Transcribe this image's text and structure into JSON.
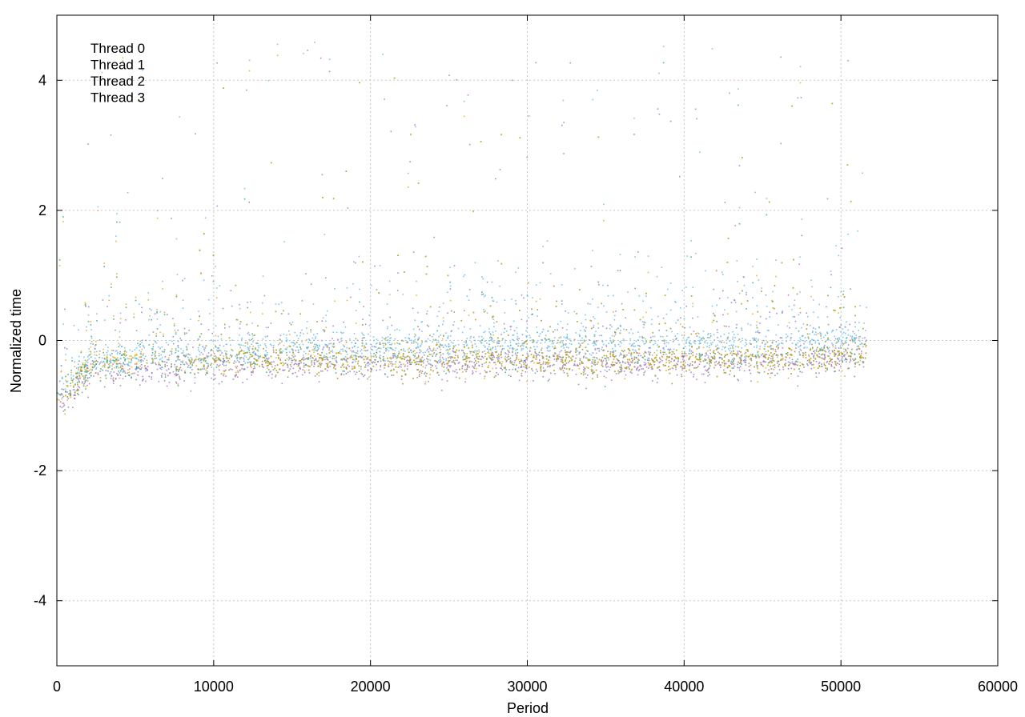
{
  "chart_data": {
    "type": "scatter",
    "xlabel": "Period",
    "ylabel": "Normalized time",
    "xlim": [
      0,
      60000
    ],
    "ylim": [
      -5,
      5
    ],
    "x_ticks": [
      0,
      10000,
      20000,
      30000,
      40000,
      50000,
      60000
    ],
    "y_ticks": [
      -4,
      -2,
      0,
      2,
      4
    ],
    "grid": true,
    "legend_position": "top-left",
    "x_extent_of_data": [
      0,
      51600
    ],
    "series": [
      {
        "name": "Thread 0",
        "color": "#9467bd",
        "description_points": [
          {
            "x": 0,
            "y": -1.0
          },
          {
            "x": 2000,
            "y": -0.55
          },
          {
            "x": 5000,
            "y": -0.45
          },
          {
            "x": 10000,
            "y": -0.4
          },
          {
            "x": 20000,
            "y": -0.35
          },
          {
            "x": 30000,
            "y": -0.35
          },
          {
            "x": 40000,
            "y": -0.35
          },
          {
            "x": 50000,
            "y": -0.3
          },
          {
            "x": 51600,
            "y": -0.3
          }
        ]
      },
      {
        "name": "Thread 1",
        "color": "#1a9e77",
        "description_points": [
          {
            "x": 0,
            "y": -0.9
          },
          {
            "x": 2000,
            "y": -0.4
          },
          {
            "x": 5000,
            "y": -0.35
          },
          {
            "x": 10000,
            "y": -0.3
          },
          {
            "x": 20000,
            "y": -0.3
          },
          {
            "x": 30000,
            "y": -0.3
          },
          {
            "x": 40000,
            "y": -0.3
          },
          {
            "x": 50000,
            "y": -0.25
          },
          {
            "x": 51600,
            "y": -0.25
          }
        ]
      },
      {
        "name": "Thread 2",
        "color": "#56b4e9",
        "description_points": [
          {
            "x": 0,
            "y": -0.9
          },
          {
            "x": 2000,
            "y": -0.3
          },
          {
            "x": 5000,
            "y": -0.2
          },
          {
            "x": 10000,
            "y": -0.15
          },
          {
            "x": 20000,
            "y": -0.1
          },
          {
            "x": 30000,
            "y": -0.05
          },
          {
            "x": 40000,
            "y": -0.05
          },
          {
            "x": 50000,
            "y": 0.0
          },
          {
            "x": 51600,
            "y": 0.0
          }
        ]
      },
      {
        "name": "Thread 3",
        "color": "#e69f00",
        "description_points": [
          {
            "x": 0,
            "y": -1.0
          },
          {
            "x": 2000,
            "y": -0.35
          },
          {
            "x": 5000,
            "y": -0.3
          },
          {
            "x": 10000,
            "y": -0.3
          },
          {
            "x": 20000,
            "y": -0.3
          },
          {
            "x": 30000,
            "y": -0.3
          },
          {
            "x": 40000,
            "y": -0.3
          },
          {
            "x": 50000,
            "y": -0.25
          },
          {
            "x": 51600,
            "y": -0.25
          }
        ]
      }
    ]
  }
}
